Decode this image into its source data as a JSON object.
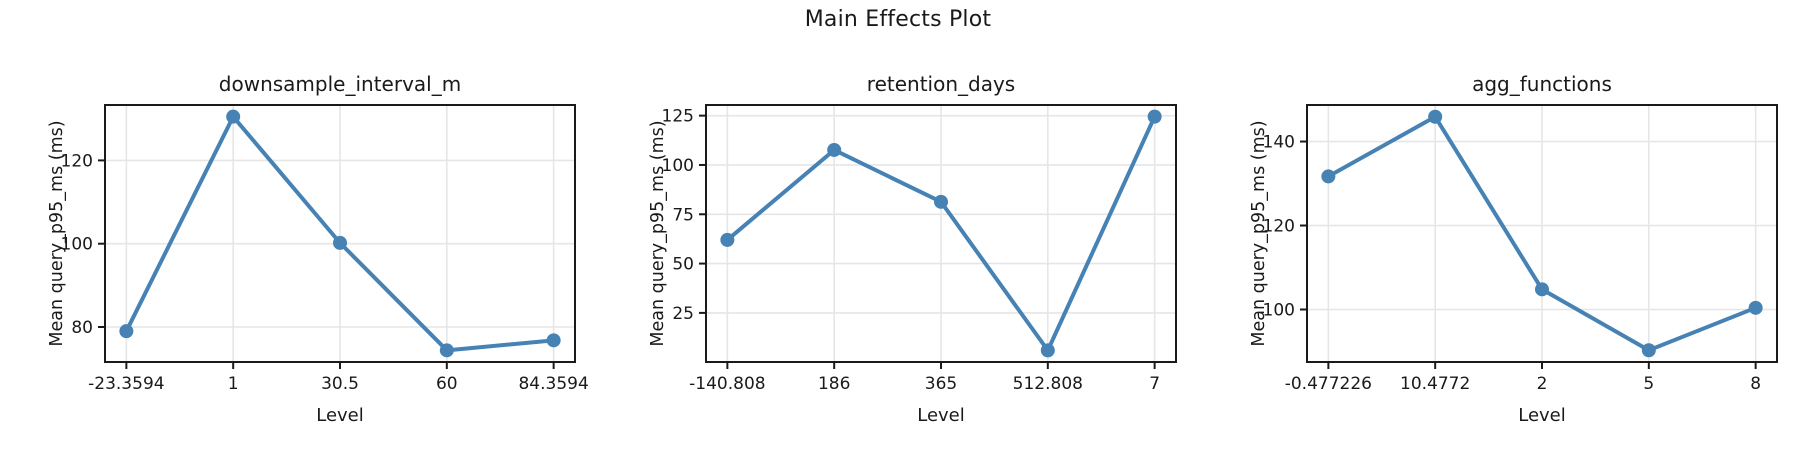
{
  "figure": {
    "suptitle": "Main Effects Plot"
  },
  "colors": {
    "line": "#4682b4",
    "marker": "#4682b4",
    "grid": "#e6e6e6",
    "spine": "#1a1a1a",
    "text": "#1a1a1a",
    "background": "#ffffff"
  },
  "chart_data": [
    {
      "type": "line",
      "title": "downsample_interval_m",
      "xlabel": "Level",
      "ylabel": "Mean query_p95_ms (ms)",
      "categories": [
        "-23.3594",
        "1",
        "30.5",
        "60",
        "84.3594"
      ],
      "values": [
        79,
        130.5,
        100.2,
        74.4,
        76.8
      ],
      "yticks": [
        80,
        100,
        120
      ],
      "ylim": [
        71.6,
        133.3
      ],
      "xlim": [
        -0.2,
        4.2
      ],
      "grid": true,
      "legend": "none"
    },
    {
      "type": "line",
      "title": "retention_days",
      "xlabel": "Level",
      "ylabel": "Mean query_p95_ms (ms)",
      "categories": [
        "-140.808",
        "186",
        "365",
        "512.808",
        "7"
      ],
      "values": [
        62,
        107.6,
        81.3,
        6,
        124.5
      ],
      "yticks": [
        25,
        50,
        75,
        100,
        125
      ],
      "ylim": [
        0.1,
        130.4
      ],
      "xlim": [
        -0.2,
        4.2
      ],
      "grid": true,
      "legend": "none"
    },
    {
      "type": "line",
      "title": "agg_functions",
      "xlabel": "Level",
      "ylabel": "Mean query_p95_ms (ms)",
      "categories": [
        "-0.477226",
        "10.4772",
        "2",
        "5",
        "8"
      ],
      "values": [
        131.7,
        145.9,
        104.8,
        90.3,
        100.4
      ],
      "yticks": [
        100,
        120,
        140
      ],
      "ylim": [
        87.5,
        148.7
      ],
      "xlim": [
        -0.2,
        4.2
      ],
      "grid": true,
      "legend": "none"
    }
  ]
}
